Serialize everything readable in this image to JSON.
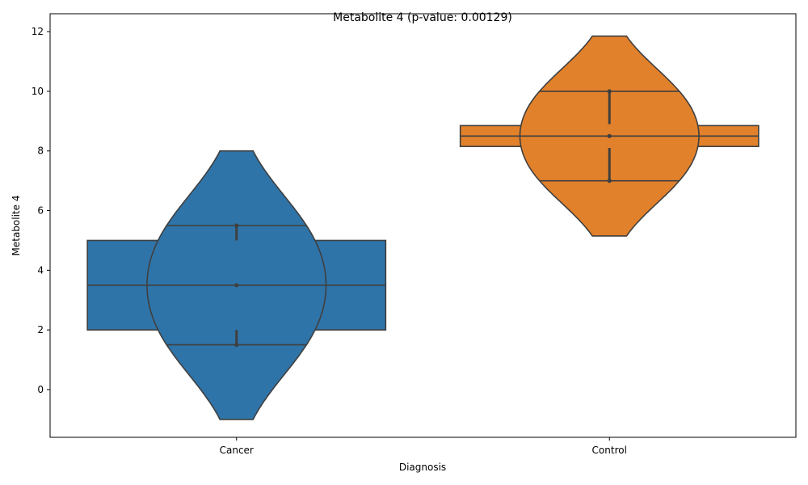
{
  "chart_data": {
    "type": "violin",
    "title": "Metabolite 4 (p-value: 0.00129)",
    "xlabel": "Diagnosis",
    "ylabel": "Metabolite 4",
    "categories": [
      "Cancer",
      "Control"
    ],
    "ylim": [
      -1.6,
      12.6
    ],
    "yticks": [
      0,
      2,
      4,
      6,
      8,
      10,
      12
    ],
    "yticklabels": [
      "0",
      "2",
      "4",
      "6",
      "8",
      "10",
      "12"
    ],
    "grid": false,
    "colors": {
      "Cancer": "#2f74a8",
      "Control": "#e2812b",
      "outline": "#3f3f3f"
    },
    "groups": [
      {
        "name": "Cancer",
        "points": [
          1.5,
          3.5,
          5.5
        ],
        "box": {
          "q1": 2.0,
          "median": 3.5,
          "q3": 5.0,
          "whisker_low": 2.0,
          "whisker_high": 5.0
        },
        "violin": {
          "min": -1.0,
          "max": 8.0,
          "median": 3.5,
          "q1": 1.5,
          "q3": 5.5
        },
        "ci": [
          [
            1.5,
            2.0
          ],
          [
            5.0,
            5.5
          ]
        ]
      },
      {
        "name": "Control",
        "points": [
          7.0,
          8.5,
          10.0
        ],
        "box": {
          "q1": 8.15,
          "median": 8.5,
          "q3": 8.85,
          "whisker_low": 8.15,
          "whisker_high": 8.85
        },
        "violin": {
          "min": 5.15,
          "max": 11.85,
          "median": 8.5,
          "q1": 7.0,
          "q3": 10.0
        },
        "ci": [
          [
            7.0,
            8.1
          ],
          [
            8.9,
            10.0
          ]
        ]
      }
    ]
  }
}
